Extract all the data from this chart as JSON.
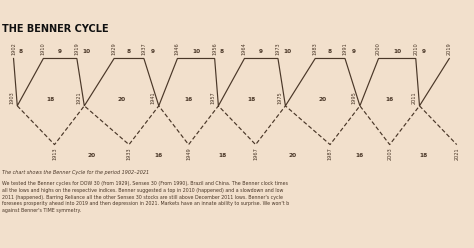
{
  "title": "THE BENNER CYCLE",
  "bg_color": "#f2e0cc",
  "subtitle": "The chart shows the Benner Cycle for the period 1902–2021",
  "body_text": "We tested the Benner cycles for DOW 30 (from 1929), Sensex 30 (From 1990), Brazil and China. The Benner clock times\nall the lows and highs on the respective indices. Benner suggested a top in 2010 (happened) and a slowdown and low\n2011 (happened). Barring Reliance all the other Sensex 30 stocks are still above December 2011 lows. Benner's cycle\nforesees prosperity ahead into 2019 and then depression in 2021. Markets have an innate ability to surprise. We won't b\nagainst Benner's TIME symmetry.",
  "top_years": [
    1902,
    1910,
    1919,
    1929,
    1937,
    1946,
    1956,
    1964,
    1973,
    1983,
    1991,
    2000,
    2010,
    2019
  ],
  "mid_years": [
    1903,
    1921,
    1941,
    1957,
    1975,
    1995,
    2011
  ],
  "bot_years": [
    1913,
    1933,
    1949,
    1967,
    1987,
    2003,
    2021
  ],
  "top_gaps": [
    "8",
    "9",
    "10",
    "8",
    "9",
    "10",
    "8",
    "9",
    "10",
    "8",
    "9",
    "10",
    "9"
  ],
  "mid_gaps": [
    "18",
    "20",
    "16",
    "18",
    "20",
    "16"
  ],
  "bot_gaps": [
    "20",
    "16",
    "18",
    "20",
    "16",
    "18"
  ],
  "line_color": "#4a3728",
  "text_color": "#4a3728",
  "title_color": "#111111"
}
